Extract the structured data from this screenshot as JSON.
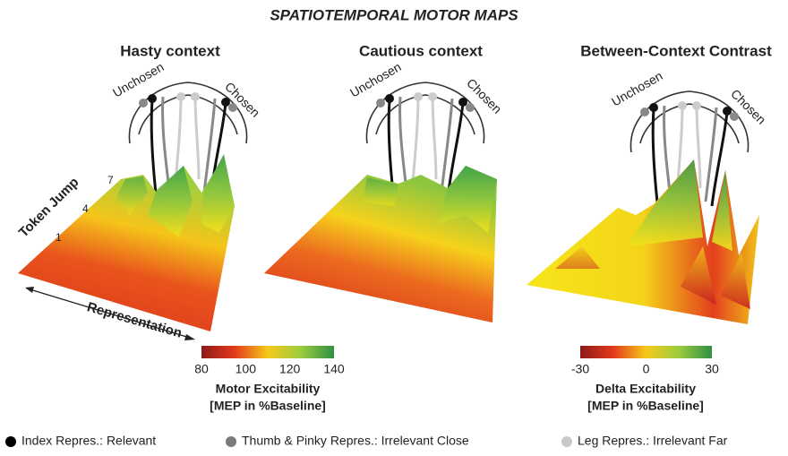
{
  "header": {
    "title": "SPATIOTEMPORAL MOTOR MAPS"
  },
  "panels": [
    {
      "title": "Hasty context",
      "color": "#2bb5e6",
      "unchosen": "Unchosen",
      "chosen": "Chosen"
    },
    {
      "title": "Cautious context",
      "color": "#f5b829",
      "unchosen": "Unchosen",
      "chosen": "Chosen"
    },
    {
      "title": "Between-Context Contrast",
      "color": "#333333",
      "unchosen": "Unchosen",
      "chosen": "Chosen"
    }
  ],
  "axes": {
    "token_jump": "Token Jump",
    "token_ticks": [
      "1",
      "4",
      "7"
    ],
    "representation": "Representation"
  },
  "colorbars": [
    {
      "ticks": [
        80,
        100,
        120,
        140
      ],
      "label": "Motor Excitability",
      "unit": "[MEP in %Baseline]"
    },
    {
      "ticks": [
        -30,
        0,
        30
      ],
      "label": "Delta Excitability",
      "unit": "[MEP in %Baseline]"
    }
  ],
  "legend": [
    {
      "label": "Index Repres.: Relevant",
      "color": "#000000"
    },
    {
      "label": "Thumb & Pinky Repres.: Irrelevant Close",
      "color": "#7a7a7a"
    },
    {
      "label": "Leg Repres.: Irrelevant Far",
      "color": "#c8c8c8"
    }
  ]
}
